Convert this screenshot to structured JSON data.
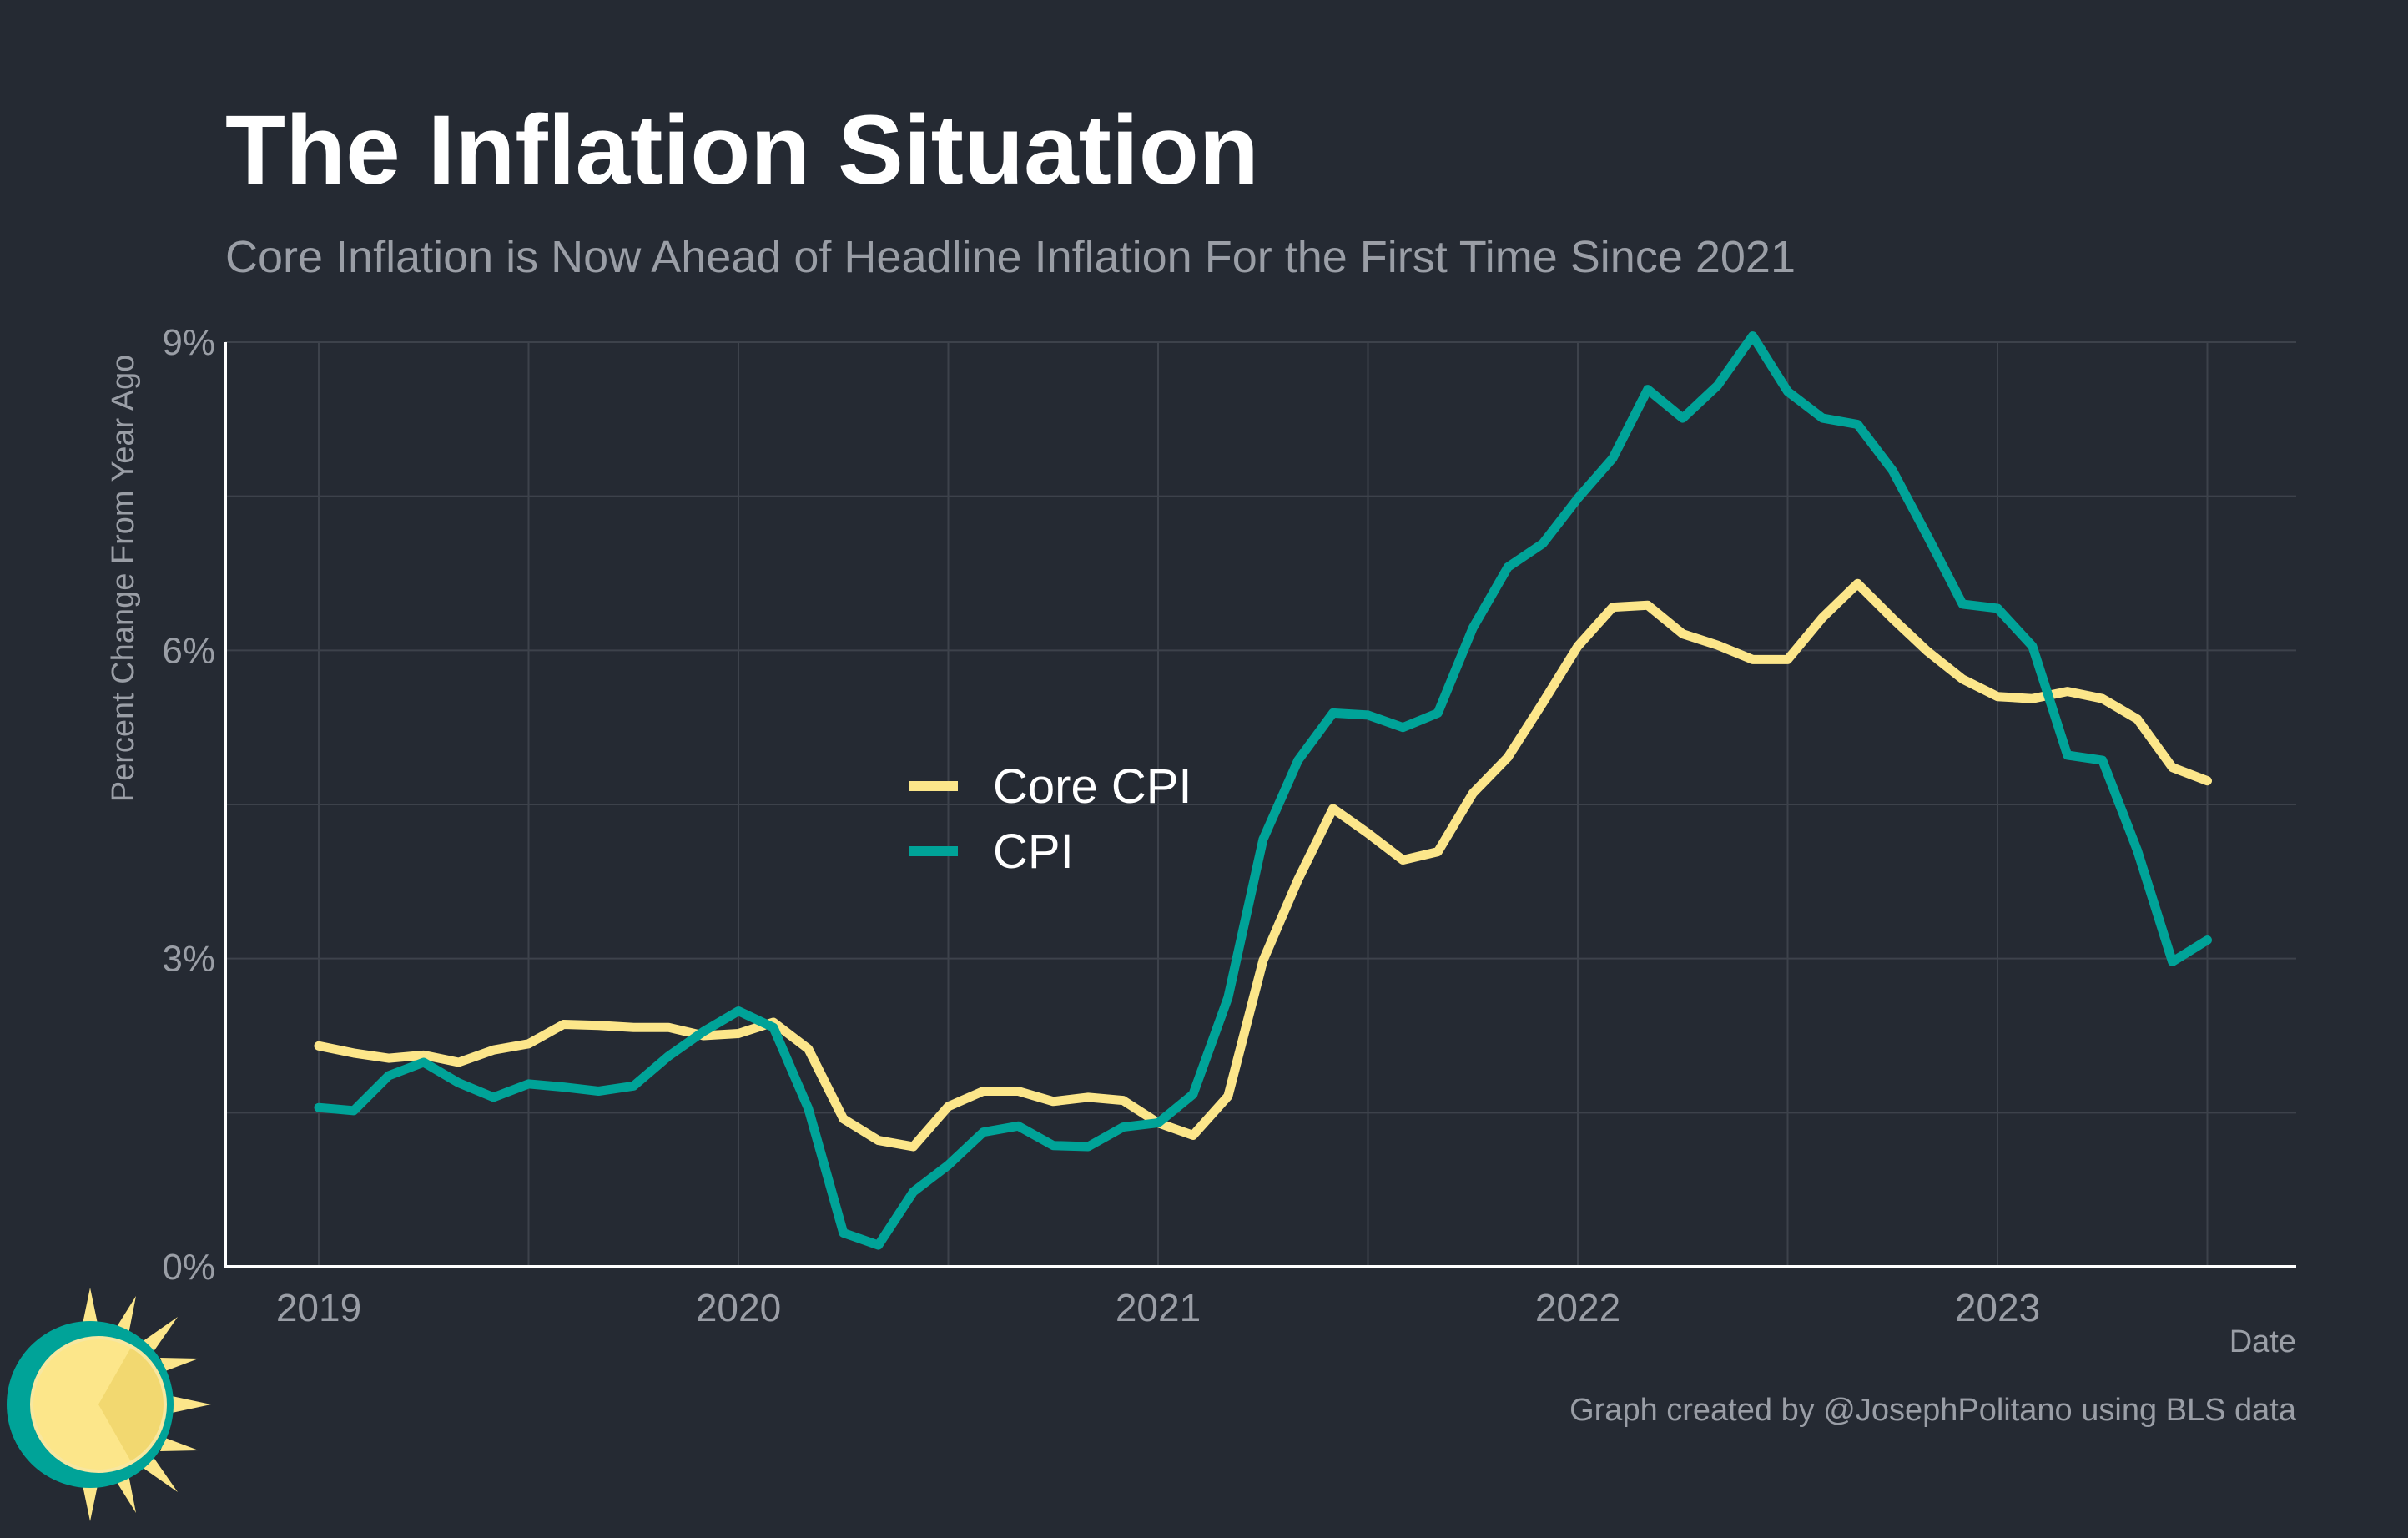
{
  "chart_data": {
    "type": "line",
    "title": "The Inflation Situation",
    "subtitle": "Core Inflation is Now Ahead of Headline Inflation For the First Time Since 2021",
    "xlabel": "Date",
    "ylabel": "Percent Change From Year Ago",
    "caption": "Graph created by @JosephPolitano using BLS data",
    "x_start": "2019-01",
    "x_ticks": [
      "2019",
      "2020",
      "2021",
      "2022",
      "2023"
    ],
    "y_ticks": [
      "0%",
      "3%",
      "6%",
      "9%"
    ],
    "ylim": [
      0,
      9
    ],
    "grid": true,
    "legend_position": "center",
    "series": [
      {
        "name": "Core CPI",
        "color": "#fce68a",
        "values": [
          2.15,
          2.08,
          2.03,
          2.06,
          1.99,
          2.11,
          2.17,
          2.36,
          2.35,
          2.33,
          2.33,
          2.25,
          2.27,
          2.38,
          2.12,
          1.44,
          1.23,
          1.17,
          1.56,
          1.71,
          1.71,
          1.61,
          1.65,
          1.62,
          1.4,
          1.28,
          1.66,
          2.98,
          3.77,
          4.46,
          4.22,
          3.96,
          4.04,
          4.61,
          4.96,
          5.49,
          6.04,
          6.42,
          6.44,
          6.16,
          6.05,
          5.91,
          5.91,
          6.32,
          6.65,
          6.31,
          5.99,
          5.72,
          5.55,
          5.53,
          5.6,
          5.53,
          5.33,
          4.86,
          4.73
        ]
      },
      {
        "name": "CPI",
        "color": "#00a398",
        "values": [
          1.55,
          1.52,
          1.86,
          1.99,
          1.79,
          1.65,
          1.78,
          1.75,
          1.71,
          1.76,
          2.05,
          2.29,
          2.49,
          2.33,
          1.54,
          0.33,
          0.21,
          0.73,
          0.99,
          1.31,
          1.37,
          1.18,
          1.17,
          1.36,
          1.4,
          1.68,
          2.62,
          4.16,
          4.93,
          5.39,
          5.37,
          5.25,
          5.39,
          6.22,
          6.81,
          7.04,
          7.48,
          7.87,
          8.54,
          8.26,
          8.58,
          9.06,
          8.52,
          8.26,
          8.2,
          7.75,
          7.11,
          6.45,
          6.41,
          6.04,
          4.98,
          4.93,
          4.05,
          2.97,
          3.18
        ]
      }
    ]
  }
}
